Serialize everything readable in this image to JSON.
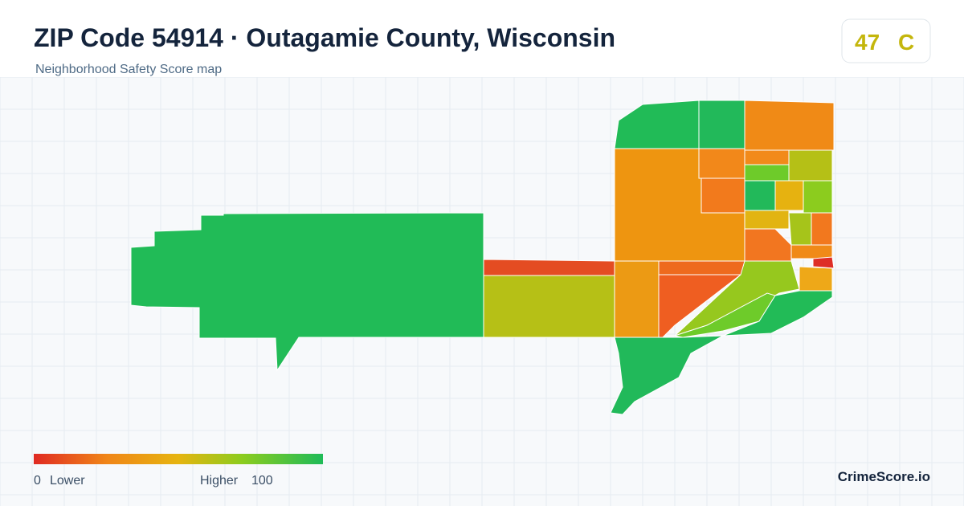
{
  "header": {
    "title": "ZIP Code 54914 · Outagamie County, Wisconsin",
    "subtitle": "Neighborhood Safety Score map"
  },
  "score": {
    "value": 47,
    "grade": "C"
  },
  "legend": {
    "min": 0,
    "min_label": "Lower",
    "max_label": "Higher",
    "max": 100
  },
  "brand": "CrimeScore.io"
}
